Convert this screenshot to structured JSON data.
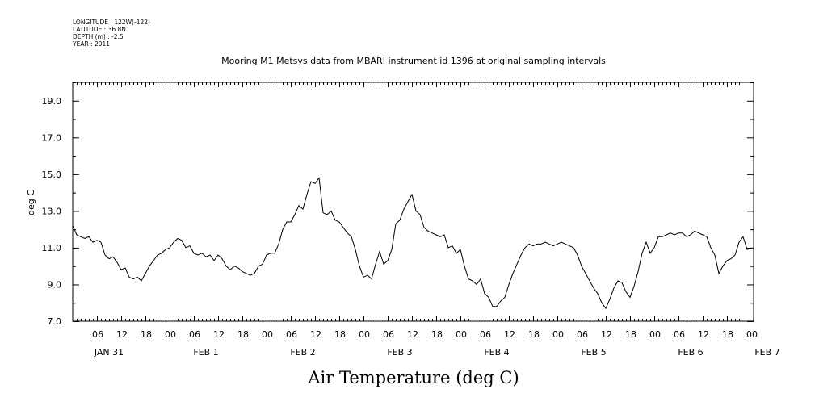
{
  "header": {
    "meta_lines": [
      "LONGITUDE : 122W(-122)",
      "LATITUDE : 36.8N",
      "DEPTH (m) : -2.5",
      "YEAR : 2011"
    ]
  },
  "chart_data": {
    "type": "line",
    "title": "Mooring M1 Metsys data from MBARI instrument id 1396 at original sampling intervals",
    "xlabel": "Air Temperature (deg C)",
    "ylabel": "deg C",
    "ylim": [
      7.0,
      20.0
    ],
    "xlim_hours": [
      0,
      165
    ],
    "y_ticks": [
      "7.0",
      "9.0",
      "11.0",
      "13.0",
      "15.0",
      "17.0",
      "19.0"
    ],
    "x_hour_ticks": [
      "06",
      "12",
      "18",
      "00",
      "06",
      "12",
      "18",
      "00",
      "06",
      "12",
      "18",
      "00",
      "06",
      "12",
      "18",
      "00",
      "06",
      "12",
      "18",
      "00",
      "06",
      "12",
      "18",
      "00",
      "06",
      "12",
      "18",
      "00"
    ],
    "x_day_labels": [
      {
        "hour": 9,
        "label": "JAN 31"
      },
      {
        "hour": 33,
        "label": "FEB  1"
      },
      {
        "hour": 57,
        "label": "FEB  2"
      },
      {
        "hour": 81,
        "label": "FEB  3"
      },
      {
        "hour": 105,
        "label": "FEB  4"
      },
      {
        "hour": 129,
        "label": "FEB  5"
      },
      {
        "hour": 153,
        "label": "FEB  6"
      },
      {
        "hour": 172,
        "label": "FEB  7"
      }
    ],
    "series": [
      {
        "name": "",
        "color": "#000000",
        "x_hours": [
          0,
          1,
          2,
          3,
          4,
          5,
          6,
          7,
          8,
          9,
          10,
          11,
          12,
          13,
          14,
          15,
          16,
          17,
          18,
          19,
          20,
          21,
          22,
          23,
          24,
          25,
          26,
          27,
          28,
          29,
          30,
          31,
          32,
          33,
          34,
          35,
          36,
          37,
          38,
          39,
          40,
          41,
          42,
          43,
          44,
          45,
          46,
          47,
          48,
          49,
          50,
          51,
          52,
          53,
          54,
          55,
          56,
          57,
          58,
          59,
          60,
          61,
          62,
          63,
          64,
          65,
          66,
          67,
          68,
          69,
          70,
          71,
          72,
          73,
          74,
          75,
          76,
          77,
          78,
          79,
          80,
          81,
          82,
          83,
          84,
          85,
          86,
          87,
          88,
          89,
          90,
          91,
          92,
          93,
          94,
          95,
          96,
          97,
          98,
          99,
          100,
          101,
          102,
          103,
          104,
          105,
          106,
          107,
          108,
          109,
          110,
          111,
          112,
          113,
          114,
          115,
          116,
          117,
          118,
          119,
          120,
          121,
          122,
          123,
          124,
          125,
          126,
          127,
          128,
          129,
          130,
          131,
          132,
          133,
          134,
          135,
          136,
          137,
          138,
          139,
          140,
          141,
          142,
          143,
          144,
          145,
          146,
          147,
          148,
          149,
          150,
          151,
          152,
          153,
          154,
          155,
          156,
          157,
          158,
          159,
          160,
          161,
          162,
          163,
          164,
          165,
          166,
          167,
          168
        ],
        "values": [
          12.2,
          11.7,
          11.6,
          11.5,
          11.6,
          11.3,
          11.4,
          11.3,
          10.6,
          10.4,
          10.5,
          10.2,
          9.8,
          9.9,
          9.4,
          9.3,
          9.4,
          9.2,
          9.6,
          10.0,
          10.3,
          10.6,
          10.7,
          10.9,
          11.0,
          11.3,
          11.5,
          11.4,
          11.0,
          11.1,
          10.7,
          10.6,
          10.7,
          10.5,
          10.6,
          10.3,
          10.6,
          10.4,
          10.0,
          9.8,
          10.0,
          9.9,
          9.7,
          9.6,
          9.5,
          9.6,
          10.0,
          10.1,
          10.6,
          10.7,
          10.7,
          11.2,
          12.0,
          12.4,
          12.4,
          12.8,
          13.3,
          13.1,
          13.9,
          14.6,
          14.5,
          14.8,
          12.9,
          12.8,
          13.0,
          12.5,
          12.4,
          12.1,
          11.8,
          11.6,
          10.9,
          10.0,
          9.4,
          9.5,
          9.3,
          10.1,
          10.8,
          10.1,
          10.3,
          10.9,
          12.3,
          12.5,
          13.1,
          13.5,
          13.9,
          13.0,
          12.8,
          12.1,
          11.9,
          11.8,
          11.7,
          11.6,
          11.7,
          11.0,
          11.1,
          10.7,
          10.9,
          10.0,
          9.3,
          9.2,
          9.0,
          9.3,
          8.5,
          8.3,
          7.8,
          7.8,
          8.1,
          8.3,
          9.0,
          9.6,
          10.1,
          10.6,
          11.0,
          11.2,
          11.1,
          11.2,
          11.2,
          11.3,
          11.2,
          11.1,
          11.2,
          11.3,
          11.2,
          11.1,
          11.0,
          10.6,
          10.0,
          9.6,
          9.2,
          8.8,
          8.5,
          8.0,
          7.7,
          8.2,
          8.8,
          9.2,
          9.1,
          8.6,
          8.3,
          8.9,
          9.7,
          10.7,
          11.3,
          10.7,
          11.0,
          11.6,
          11.6,
          11.7,
          11.8,
          11.7,
          11.8,
          11.8,
          11.6,
          11.7,
          11.9,
          11.8,
          11.7,
          11.6,
          11.0,
          10.6,
          9.6,
          10.0,
          10.3,
          10.4,
          10.6,
          11.3,
          11.6,
          10.9,
          11.0
        ]
      }
    ]
  }
}
